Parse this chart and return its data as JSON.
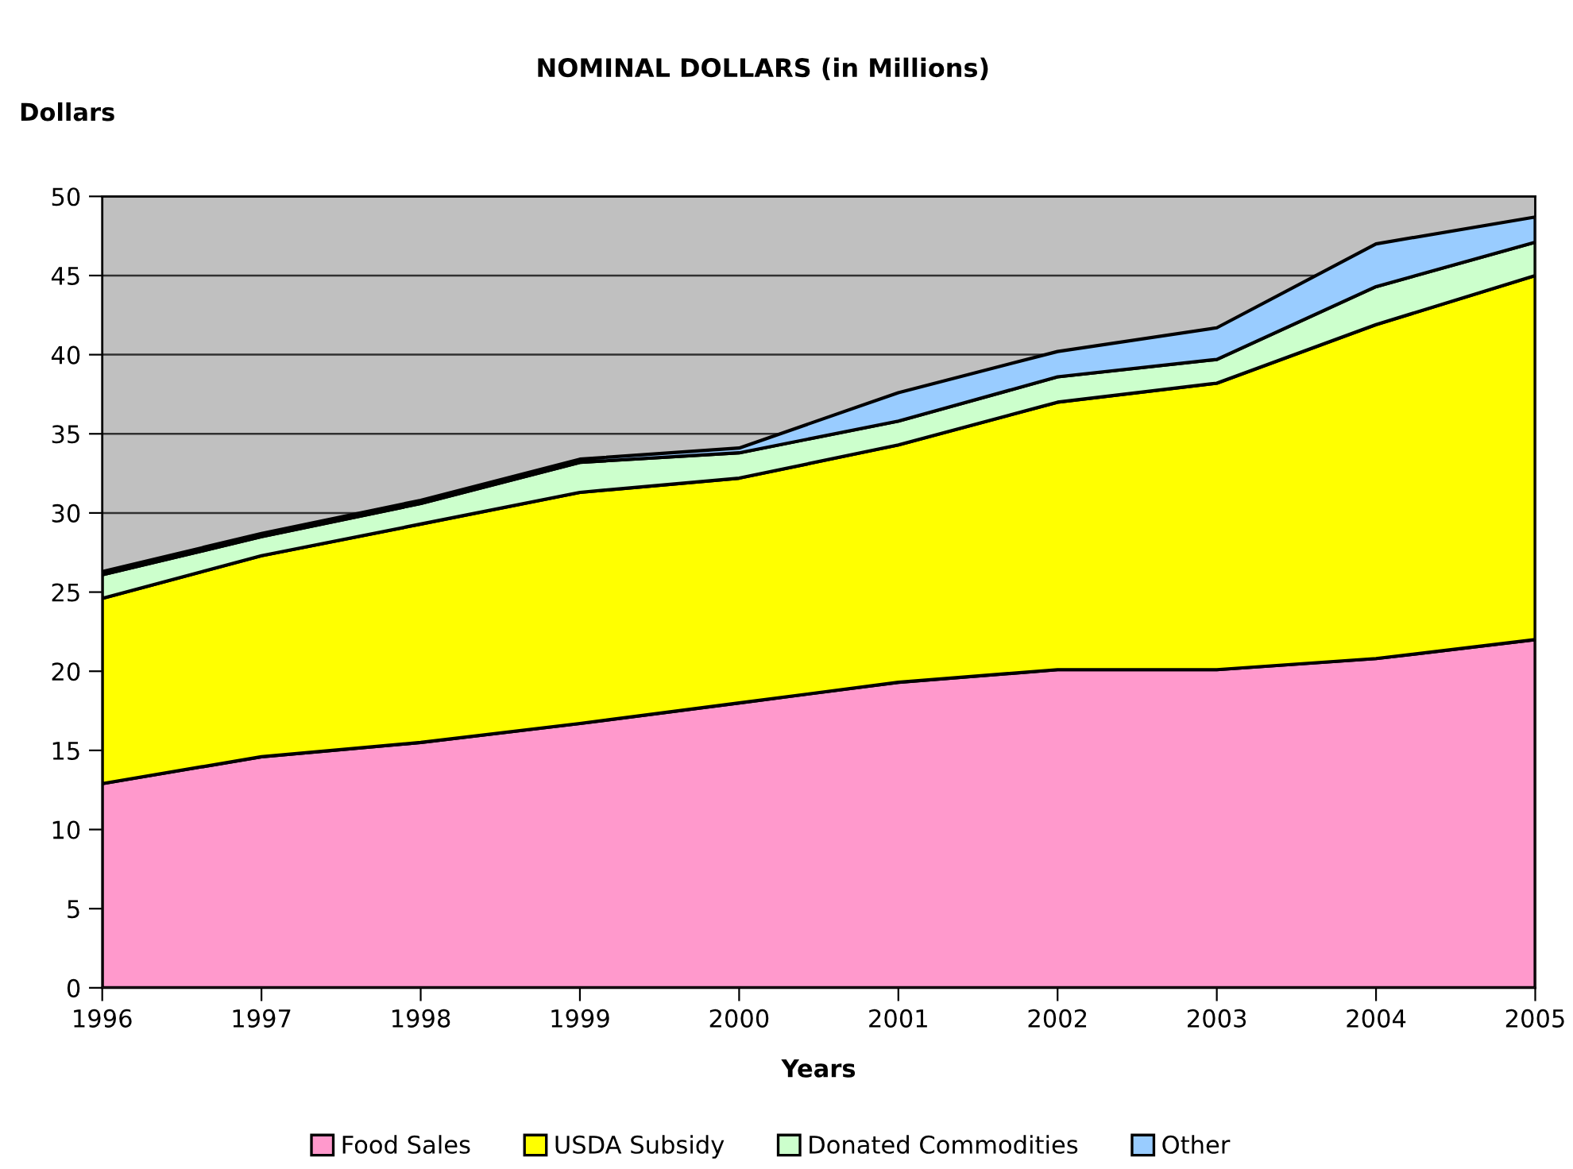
{
  "chart_data": {
    "type": "area",
    "title": "NOMINAL DOLLARS (in Millions)",
    "xlabel": "Years",
    "ylabel": "Dollars",
    "categories": [
      "1996",
      "1997",
      "1998",
      "1999",
      "2000",
      "2001",
      "2002",
      "2003",
      "2004",
      "2005"
    ],
    "stacked": true,
    "ylim": [
      0,
      50
    ],
    "yticks": [
      0,
      5,
      10,
      15,
      20,
      25,
      30,
      35,
      40,
      45,
      50
    ],
    "grid": "y",
    "legend": "bottom",
    "series": [
      {
        "name": "Food Sales",
        "color": "#ff99cc",
        "values": [
          12.9,
          14.6,
          15.5,
          16.7,
          18.0,
          19.3,
          20.1,
          20.1,
          20.8,
          22.0
        ]
      },
      {
        "name": "USDA Subsidy",
        "color": "#ffff00",
        "values": [
          11.7,
          12.7,
          13.8,
          14.6,
          14.2,
          15.0,
          16.9,
          18.1,
          21.1,
          23.0
        ]
      },
      {
        "name": "Donated Commodities",
        "color": "#ccffcc",
        "values": [
          1.5,
          1.2,
          1.3,
          1.9,
          1.6,
          1.5,
          1.6,
          1.5,
          2.4,
          2.1
        ]
      },
      {
        "name": "Other",
        "color": "#99ccff",
        "values": [
          0.2,
          0.2,
          0.2,
          0.2,
          0.3,
          1.8,
          1.6,
          2.0,
          2.7,
          1.6
        ]
      }
    ]
  }
}
